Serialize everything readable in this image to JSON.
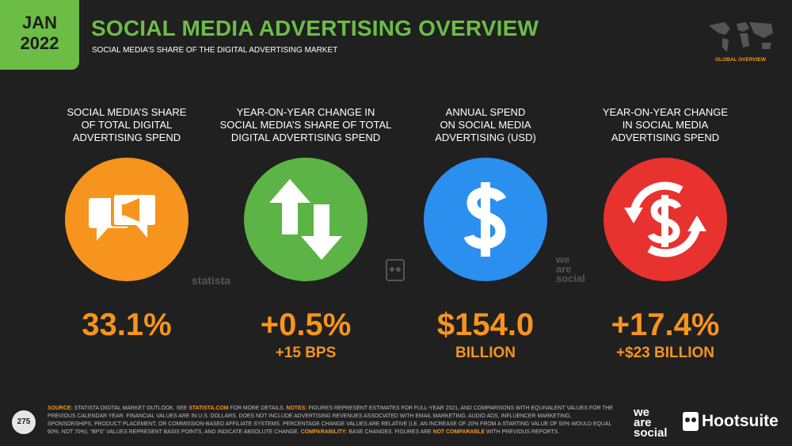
{
  "header": {
    "badge": [
      "JAN",
      "2022"
    ],
    "title": "SOCIAL MEDIA ADVERTISING OVERVIEW",
    "subtitle": "SOCIAL MEDIA’S SHARE OF THE DIGITAL ADVERTISING MARKET",
    "map_label": "GLOBAL OVERVIEW"
  },
  "cards": [
    {
      "label": [
        "SOCIAL MEDIA’S SHARE",
        "OF TOTAL DIGITAL",
        "ADVERTISING SPEND"
      ],
      "value": "33.1%"
    },
    {
      "label": [
        "YEAR-ON-YEAR CHANGE IN",
        "SOCIAL MEDIA’S SHARE OF TOTAL",
        "DIGITAL ADVERTISING SPEND"
      ],
      "value": "+0.5%",
      "sub": "+15 BPS"
    },
    {
      "label": [
        "ANNUAL SPEND",
        "ON SOCIAL MEDIA",
        "ADVERTISING (USD)"
      ],
      "value": "$154.0",
      "sub": "BILLION"
    },
    {
      "label": [
        "YEAR-ON-YEAR CHANGE",
        "IN SOCIAL MEDIA",
        "ADVERTISING SPEND"
      ],
      "value": "+17.4%",
      "sub": "+$23 BILLION"
    }
  ],
  "watermarks": {
    "statista": "statista",
    "wearesocial": [
      "we",
      "are",
      "social"
    ]
  },
  "footer": {
    "page": "275",
    "source": [
      "SOURCE:",
      "STATISTA DIGITAL MARKET OUTLOOK. SEE",
      "STATISTA.COM",
      "FOR MORE DETAILS.",
      "NOTES:",
      "FIGURES REPRESENT ESTIMATES FOR FULL-YEAR 2021, AND COMPARISONS WITH EQUIVALENT VALUES FOR THE PREVIOUS CALENDAR YEAR. FINANCIAL VALUES ARE IN U.S. DOLLARS. DOES NOT INCLUDE ADVERTISING REVENUES ASSOCIATED WITH EMAIL MARKETING, AUDIO ADS, INFLUENCER MARKETING, SPONSORSHIPS, PRODUCT PLACEMENT, OR COMMISSION-BASED AFFILIATE SYSTEMS. PERCENTAGE CHANGE VALUES ARE RELATIVE (I.E. AN INCREASE OF 20% FROM A STARTING VALUE OF 50% WOULD EQUAL 60%, NOT 70%). “BPS” VALUES REPRESENT BASIS POINTS, AND INDICATE ABSOLUTE CHANGE.",
      "COMPARABILITY:",
      "BASE CHANGES. FIGURES ARE",
      "NOT COMPARABLE",
      "WITH PREVIOUS REPORTS."
    ],
    "logos": {
      "wearesocial": [
        "we",
        "are",
        "social"
      ],
      "hootsuite": "Hootsuite"
    }
  }
}
